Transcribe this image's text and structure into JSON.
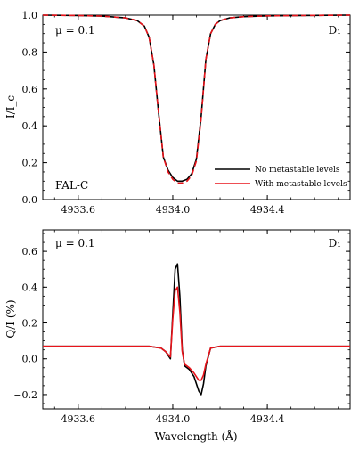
{
  "chart_data": [
    {
      "type": "line",
      "ylabel": "I/I_c",
      "xlim": [
        4933.45,
        4934.75
      ],
      "ylim": [
        0.0,
        1.0
      ],
      "xticks": [
        4933.6,
        4934.0,
        4934.4
      ],
      "xtick_labels": [
        "4933.6",
        "4934.0",
        "4934.4"
      ],
      "yticks": [
        0.0,
        0.2,
        0.4,
        0.6,
        0.8,
        1.0
      ],
      "ytick_labels": [
        "0.0",
        "0.2",
        "0.4",
        "0.6",
        "0.8",
        "1.0"
      ],
      "annotations": {
        "mu": "μ = 0.1",
        "line": "D₁",
        "model": "FAL-C"
      },
      "legend_position": "lower-right",
      "series": [
        {
          "name": "No metastable levels",
          "color": "#000000",
          "style": "solid",
          "x": [
            4933.45,
            4933.6,
            4933.7,
            4933.8,
            4933.85,
            4933.88,
            4933.9,
            4933.92,
            4933.94,
            4933.96,
            4933.98,
            4934.0,
            4934.02,
            4934.04,
            4934.06,
            4934.08,
            4934.1,
            4934.12,
            4934.14,
            4934.16,
            4934.18,
            4934.2,
            4934.24,
            4934.3,
            4934.4,
            4934.55,
            4934.75
          ],
          "y": [
            1.0,
            0.998,
            0.995,
            0.985,
            0.97,
            0.94,
            0.88,
            0.73,
            0.47,
            0.23,
            0.16,
            0.12,
            0.1,
            0.1,
            0.11,
            0.14,
            0.22,
            0.45,
            0.76,
            0.9,
            0.95,
            0.97,
            0.985,
            0.992,
            0.996,
            0.998,
            1.0
          ]
        },
        {
          "name": "With metastable levels",
          "color": "#e8141b",
          "style": "dashed",
          "x": [
            4933.45,
            4933.6,
            4933.7,
            4933.8,
            4933.85,
            4933.88,
            4933.9,
            4933.92,
            4933.94,
            4933.96,
            4933.98,
            4934.0,
            4934.02,
            4934.04,
            4934.06,
            4934.08,
            4934.1,
            4934.12,
            4934.14,
            4934.16,
            4934.18,
            4934.2,
            4934.24,
            4934.3,
            4934.4,
            4934.55,
            4934.75
          ],
          "y": [
            1.0,
            0.998,
            0.995,
            0.985,
            0.97,
            0.94,
            0.88,
            0.73,
            0.47,
            0.23,
            0.15,
            0.11,
            0.09,
            0.09,
            0.1,
            0.13,
            0.21,
            0.44,
            0.76,
            0.9,
            0.95,
            0.97,
            0.985,
            0.992,
            0.996,
            0.998,
            1.0
          ]
        }
      ]
    },
    {
      "type": "line",
      "ylabel": "Q/I (%)",
      "xlabel": "Wavelength (Å)",
      "xlim": [
        4933.45,
        4934.75
      ],
      "ylim": [
        -0.28,
        0.72
      ],
      "xticks": [
        4933.6,
        4934.0,
        4934.4
      ],
      "xtick_labels": [
        "4933.6",
        "4934.0",
        "4934.4"
      ],
      "yticks": [
        -0.2,
        0.0,
        0.2,
        0.4,
        0.6
      ],
      "ytick_labels": [
        "−0.2",
        "0.0",
        "0.2",
        "0.4",
        "0.6"
      ],
      "annotations": {
        "mu": "μ = 0.1",
        "line": "D₁"
      },
      "series": [
        {
          "name": "No metastable levels",
          "color": "#000000",
          "style": "solid",
          "x": [
            4933.45,
            4933.8,
            4933.9,
            4933.95,
            4933.97,
            4933.99,
            4934.0,
            4934.01,
            4934.02,
            4934.03,
            4934.04,
            4934.05,
            4934.07,
            4934.09,
            4934.11,
            4934.12,
            4934.13,
            4934.14,
            4934.16,
            4934.2,
            4934.4,
            4934.75
          ],
          "y": [
            0.07,
            0.07,
            0.07,
            0.06,
            0.04,
            0.0,
            0.25,
            0.5,
            0.53,
            0.35,
            0.05,
            -0.04,
            -0.06,
            -0.1,
            -0.18,
            -0.2,
            -0.14,
            -0.04,
            0.06,
            0.07,
            0.07,
            0.07
          ]
        },
        {
          "name": "With metastable levels",
          "color": "#e8141b",
          "style": "solid",
          "x": [
            4933.45,
            4933.8,
            4933.9,
            4933.95,
            4933.97,
            4933.99,
            4934.0,
            4934.01,
            4934.02,
            4934.03,
            4934.04,
            4934.05,
            4934.07,
            4934.09,
            4934.11,
            4934.12,
            4934.13,
            4934.14,
            4934.16,
            4934.2,
            4934.4,
            4934.75
          ],
          "y": [
            0.07,
            0.07,
            0.07,
            0.06,
            0.04,
            0.01,
            0.22,
            0.38,
            0.4,
            0.26,
            0.04,
            -0.03,
            -0.05,
            -0.08,
            -0.12,
            -0.12,
            -0.09,
            -0.03,
            0.06,
            0.07,
            0.07,
            0.07
          ]
        }
      ]
    }
  ]
}
